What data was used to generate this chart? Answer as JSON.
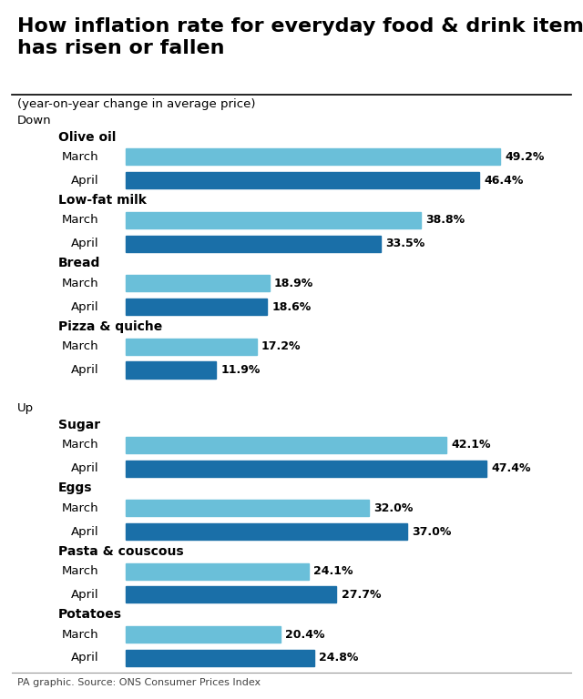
{
  "title": "How inflation rate for everyday food & drink items\nhas risen or fallen",
  "subtitle": "(year-on-year change in average price)",
  "footer": "PA graphic. Source: ONS Consumer Prices Index",
  "sections": [
    {
      "section_label": "Down",
      "items": [
        {
          "category": "Olive oil",
          "march_val": 49.2,
          "april_val": 46.4
        },
        {
          "category": "Low-fat milk",
          "march_val": 38.8,
          "april_val": 33.5
        },
        {
          "category": "Bread",
          "march_val": 18.9,
          "april_val": 18.6
        },
        {
          "category": "Pizza & quiche",
          "march_val": 17.2,
          "april_val": 11.9
        }
      ]
    },
    {
      "section_label": "Up",
      "items": [
        {
          "category": "Sugar",
          "march_val": 42.1,
          "april_val": 47.4
        },
        {
          "category": "Eggs",
          "march_val": 32.0,
          "april_val": 37.0
        },
        {
          "category": "Pasta & couscous",
          "march_val": 24.1,
          "april_val": 27.7
        },
        {
          "category": "Potatoes",
          "march_val": 20.4,
          "april_val": 24.8
        }
      ]
    }
  ],
  "color_march": "#6abfd9",
  "color_april": "#1a6fa8",
  "max_val": 52,
  "background_color": "#ffffff",
  "title_fontsize": 16,
  "subtitle_fontsize": 9.5,
  "label_fontsize": 9.5,
  "category_fontsize": 10,
  "section_fontsize": 9.5,
  "value_fontsize": 9,
  "footer_fontsize": 8
}
